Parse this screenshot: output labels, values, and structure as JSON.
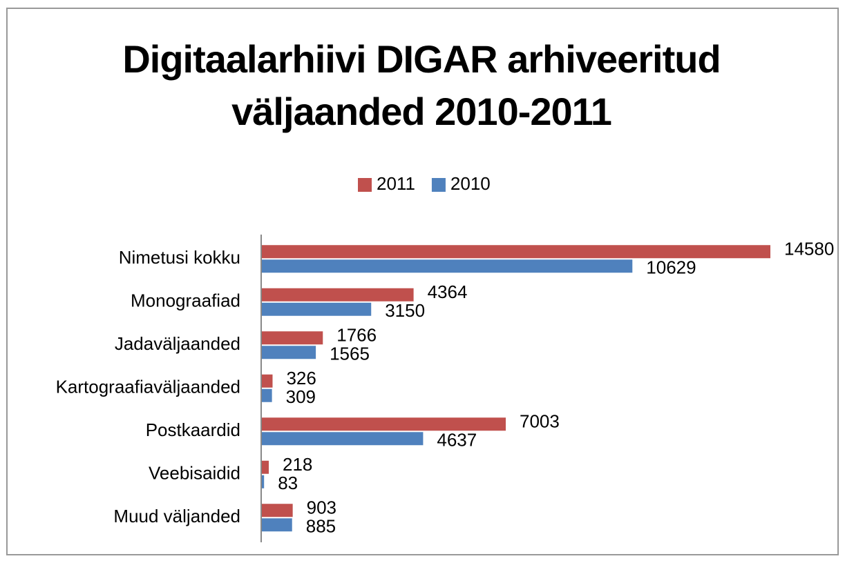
{
  "chart_data": {
    "type": "hbar",
    "title": "Digitaalarhiivi DIGAR arhiveeritud väljaanded 2010-2011",
    "categories": [
      "Nimetusi kokku",
      "Monograafiad",
      "Jadaväljaanded",
      "Kartograafiaväljaanded",
      "Postkaardid",
      "Veebisaidid",
      "Muud väljanded"
    ],
    "series": [
      {
        "name": "2011",
        "color": "#c0504d",
        "values": [
          14580,
          4364,
          1766,
          326,
          7003,
          218,
          903
        ]
      },
      {
        "name": "2010",
        "color": "#4f81bd",
        "values": [
          10629,
          3150,
          1565,
          309,
          4637,
          83,
          885
        ]
      }
    ],
    "legend": "top"
  }
}
